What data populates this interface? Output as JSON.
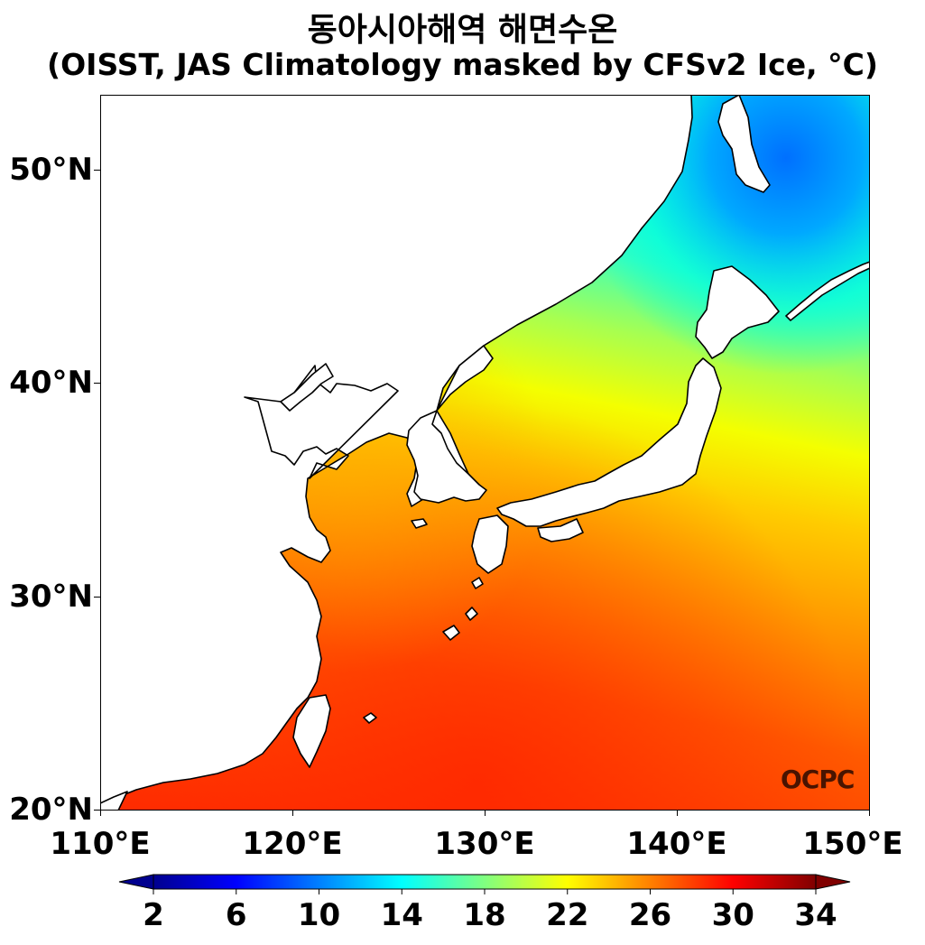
{
  "title": {
    "line1": "동아시아해역 해면수온",
    "line2": "(OISST, JAS Climatology masked by CFSv2 Ice, °C)"
  },
  "map": {
    "lon_range": [
      110,
      150
    ],
    "lat_range": [
      20,
      53.5
    ],
    "land_color": "#ffffff",
    "coastline_color": "#000000"
  },
  "axes": {
    "lat_labels": [
      {
        "value": 50,
        "label": "50°N"
      },
      {
        "value": 40,
        "label": "40°N"
      },
      {
        "value": 30,
        "label": "30°N"
      },
      {
        "value": 20,
        "label": "20°N"
      }
    ],
    "lon_labels": [
      {
        "value": 110,
        "label": "110°E"
      },
      {
        "value": 120,
        "label": "120°E"
      },
      {
        "value": 130,
        "label": "130°E"
      },
      {
        "value": 140,
        "label": "140°E"
      },
      {
        "value": 150,
        "label": "150°E"
      }
    ]
  },
  "colorbar": {
    "ticks": [
      "2",
      "6",
      "10",
      "14",
      "18",
      "22",
      "26",
      "30",
      "34"
    ],
    "min": 2,
    "max": 34,
    "extend": "both",
    "colors": [
      "#00008f",
      "#0000ff",
      "#0080ff",
      "#00ffff",
      "#80ff80",
      "#ffff00",
      "#ff8000",
      "#ff0000",
      "#800000"
    ]
  },
  "logo": "OCPC"
}
